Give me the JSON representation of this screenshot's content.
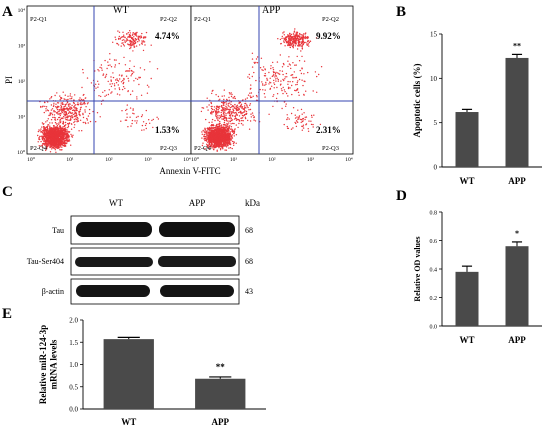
{
  "panels": {
    "A": "A",
    "B": "B",
    "C": "C",
    "D": "D",
    "E": "E"
  },
  "panel_a": {
    "plots": [
      {
        "title": "WT",
        "q1": "P2-Q1",
        "q2": "P2-Q2",
        "q3": "P2-Q3",
        "q4": "P2-Q4",
        "pct_upper_right": "4.74%",
        "pct_lower_right": "1.53%"
      },
      {
        "title": "APP",
        "q1": "P2-Q1",
        "q2": "P2-Q2",
        "q3": "P2-Q3",
        "q4": "P2-Q4",
        "pct_upper_right": "9.92%",
        "pct_lower_right": "2.31%"
      }
    ],
    "y_label": "PI",
    "x_label": "Annexin V-FITC",
    "x_ticks": [
      "10⁰",
      "10¹",
      "10²",
      "10³",
      "10⁴"
    ],
    "y_ticks": [
      "10⁴",
      "10³",
      "10²",
      "10¹",
      "10⁰"
    ],
    "dot_color": "#e8343a",
    "gate_color": "#3446b0"
  },
  "panel_c": {
    "col_headers": [
      "WT",
      "APP"
    ],
    "kda_header": "kDa",
    "rows": [
      {
        "label": "Tau",
        "kda": "68"
      },
      {
        "label": "Tau-Ser404",
        "kda": "68"
      },
      {
        "label": "β-actin",
        "kda": "43"
      }
    ]
  },
  "chart_data": [
    {
      "panel": "B",
      "type": "bar",
      "categories": [
        "WT",
        "APP"
      ],
      "values": [
        6.2,
        12.3
      ],
      "errors": [
        0.3,
        0.4
      ],
      "significance": [
        "",
        "**"
      ],
      "ylabel": "Apoptotic cells (%)",
      "ylim": [
        0,
        15
      ],
      "yticks": [
        0,
        5,
        10,
        15
      ],
      "bar_color": "#4a4a4a"
    },
    {
      "panel": "D",
      "type": "bar",
      "categories": [
        "WT",
        "APP"
      ],
      "values": [
        0.38,
        0.56
      ],
      "errors": [
        0.04,
        0.03
      ],
      "significance": [
        "",
        "*"
      ],
      "ylabel": "Relative OD values",
      "ylim": [
        0,
        0.8
      ],
      "yticks": [
        0.0,
        0.2,
        0.4,
        0.6,
        0.8
      ],
      "bar_color": "#4a4a4a"
    },
    {
      "panel": "E",
      "type": "bar",
      "categories": [
        "WT",
        "APP"
      ],
      "values": [
        1.57,
        0.68
      ],
      "errors": [
        0.04,
        0.04
      ],
      "significance": [
        "",
        "**"
      ],
      "ylabel_lines": [
        "Relative miR-124-3p",
        "mRNA levels"
      ],
      "ylim": [
        0,
        2.0
      ],
      "yticks": [
        0.0,
        0.5,
        1.0,
        1.5,
        2.0
      ],
      "bar_color": "#4a4a4a"
    }
  ]
}
